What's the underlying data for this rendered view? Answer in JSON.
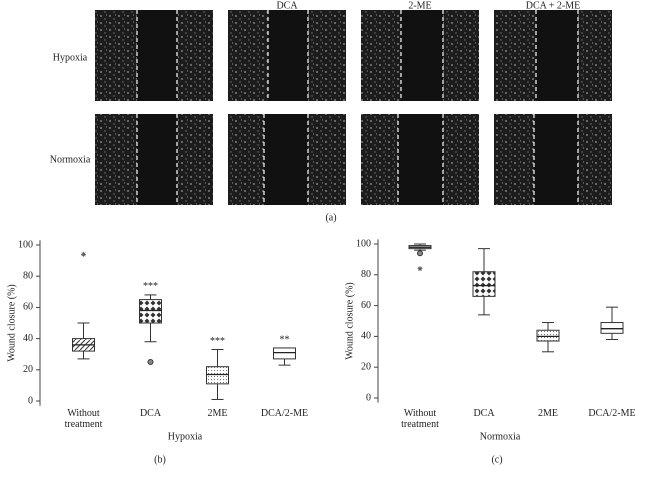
{
  "panel_a": {
    "column_headers": [
      "DCA",
      "2-ME",
      "DCA + 2-ME"
    ],
    "row_labels": [
      "Hypoxia",
      "Normoxia"
    ],
    "label": "(a)"
  },
  "chart_data": [
    {
      "type": "box",
      "ylabel": "Wound closure (%)",
      "xlabel": "Hypoxia",
      "panel_label": "(b)",
      "categories": [
        "Without treatment",
        "DCA",
        "2ME",
        "DCA/2-ME"
      ],
      "ylim": [
        -3,
        103
      ],
      "yticks": [
        0,
        20,
        40,
        60,
        80,
        100
      ],
      "patterns": [
        "diag",
        "diamond",
        "dots",
        "none"
      ],
      "boxes": [
        {
          "min": 27,
          "q1": 32,
          "median": 36,
          "q3": 40,
          "max": 50,
          "outliers": [
            94
          ],
          "outlier_shapes": [
            "star"
          ]
        },
        {
          "min": 38,
          "q1": 50,
          "median": 58,
          "q3": 65,
          "max": 68,
          "outliers": [
            25
          ],
          "outlier_shapes": [
            "circle"
          ],
          "annotation": "***"
        },
        {
          "min": 1,
          "q1": 11,
          "median": 17,
          "q3": 22,
          "max": 33,
          "outliers": [],
          "outlier_shapes": [],
          "annotation": "***"
        },
        {
          "min": 23,
          "q1": 27,
          "median": 31,
          "q3": 34,
          "max": 34,
          "outliers": [],
          "outlier_shapes": [],
          "annotation": "**"
        }
      ]
    },
    {
      "type": "box",
      "ylabel": "Wound closure (%)",
      "xlabel": "Normoxia",
      "panel_label": "(c)",
      "categories": [
        "Without treatment",
        "DCA",
        "2ME",
        "DCA/2-ME"
      ],
      "ylim": [
        -3,
        103
      ],
      "yticks": [
        0,
        20,
        40,
        60,
        80,
        100
      ],
      "patterns": [
        "hlines",
        "diamond",
        "dots",
        "none"
      ],
      "boxes": [
        {
          "min": 96,
          "q1": 97,
          "median": 98,
          "q3": 99,
          "max": 100,
          "outliers": [
            94,
            84
          ],
          "outlier_shapes": [
            "circle",
            "star"
          ]
        },
        {
          "min": 54,
          "q1": 66,
          "median": 73,
          "q3": 82,
          "max": 97,
          "outliers": [],
          "outlier_shapes": []
        },
        {
          "min": 30,
          "q1": 37,
          "median": 40,
          "q3": 44,
          "max": 49,
          "outliers": [],
          "outlier_shapes": []
        },
        {
          "min": 38,
          "q1": 42,
          "median": 45,
          "q3": 49,
          "max": 59,
          "outliers": [],
          "outlier_shapes": []
        }
      ]
    }
  ]
}
